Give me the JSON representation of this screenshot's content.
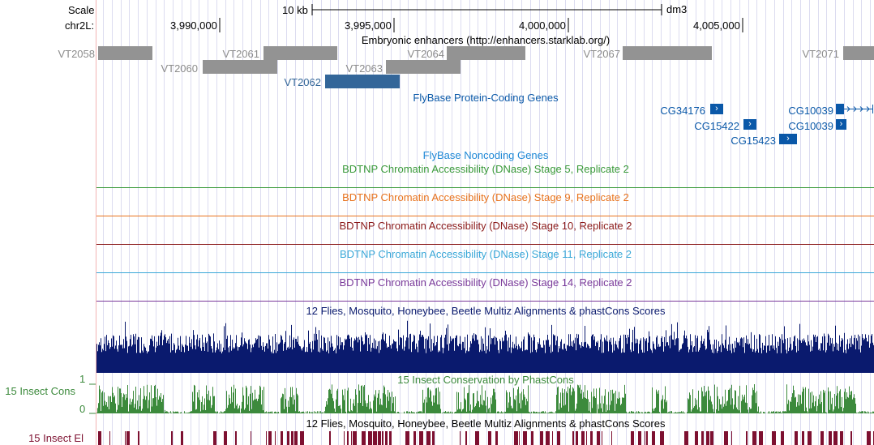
{
  "header": {
    "scale_label": "Scale",
    "scale_bar_text": "10 kb",
    "assembly": "dm3",
    "chrom_label": "chr2L:",
    "positions": [
      "3,990,000",
      "3,995,000",
      "4,000,000",
      "4,005,000"
    ]
  },
  "tracks": {
    "enhancers": {
      "title": "Embryonic enhancers (http://enhancers.starklab.org/)",
      "items": [
        "VT2058",
        "VT2060",
        "VT2061",
        "VT2062",
        "VT2063",
        "VT2064",
        "VT2067",
        "VT2071"
      ],
      "highlight_color": "#336699"
    },
    "protein_genes": {
      "title": "FlyBase Protein-Coding Genes",
      "genes": [
        "CG34176",
        "CG15422",
        "CG15423",
        "CG10039",
        "CG10039"
      ],
      "color": "#0a58a8"
    },
    "noncoding": {
      "title": "FlyBase Noncoding Genes",
      "color": "#1e88d6"
    },
    "dnase": [
      {
        "title": "BDTNP Chromatin Accessibility (DNase) Stage 5, Replicate 2",
        "color": "#3a9a3a"
      },
      {
        "title": "BDTNP Chromatin Accessibility (DNase) Stage 9, Replicate 2",
        "color": "#e8731d"
      },
      {
        "title": "BDTNP Chromatin Accessibility (DNase) Stage 10, Replicate 2",
        "color": "#8b1a1a"
      },
      {
        "title": "BDTNP Chromatin Accessibility (DNase) Stage 11, Replicate 2",
        "color": "#3aa8d8"
      },
      {
        "title": "BDTNP Chromatin Accessibility (DNase) Stage 14, Replicate 2",
        "color": "#7a3a9a"
      }
    ],
    "multiz": {
      "title": "12 Flies, Mosquito, Honeybee, Beetle Multiz Alignments & phastCons Scores",
      "color": "#0a1a6e"
    },
    "phastcons": {
      "title": "15 Insect Conservation by PhastCons",
      "side_label": "15 Insect Cons",
      "axis_max": "1",
      "axis_min": "0",
      "color": "#3c8a3c"
    },
    "elements": {
      "title": "12 Flies, Mosquito, Honeybee, Beetle Multiz Alignments & phastCons Scores",
      "side_label": "15 Insect El",
      "color": "#7d1030"
    }
  }
}
